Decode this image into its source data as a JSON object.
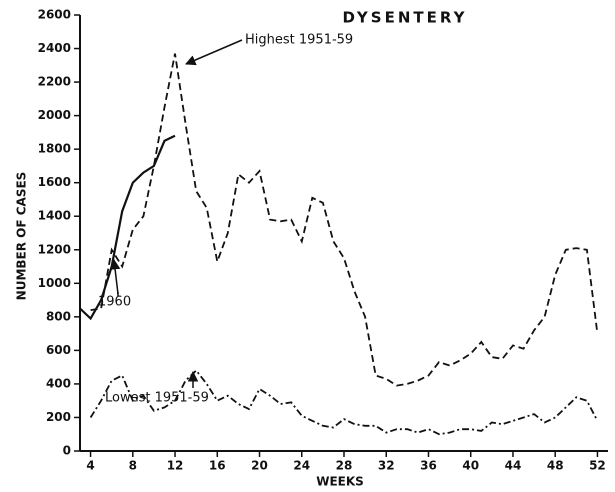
{
  "chart_data": {
    "type": "line",
    "title": "DYSENTERY",
    "y_label": "NUMBER OF CASES",
    "x_label": "WEEKS",
    "xlim": [
      3,
      53
    ],
    "ylim": [
      0,
      2600
    ],
    "xticks": [
      4,
      8,
      12,
      16,
      20,
      24,
      28,
      32,
      36,
      40,
      44,
      48,
      52
    ],
    "yticks": [
      0,
      200,
      400,
      600,
      800,
      1000,
      1200,
      1400,
      1600,
      1800,
      2000,
      2200,
      2400,
      2600
    ],
    "annotations": [
      "Highest 1951-59",
      "1960",
      "Lowest 1951-59"
    ],
    "series": [
      {
        "name": "Highest 1951-59",
        "color": "#111111",
        "dash": "dashed",
        "x": [
          4,
          5,
          6,
          7,
          8,
          9,
          10,
          11,
          12,
          13,
          14,
          15,
          16,
          17,
          18,
          19,
          20,
          21,
          22,
          23,
          24,
          25,
          26,
          27,
          28,
          29,
          30,
          31,
          32,
          33,
          34,
          35,
          36,
          37,
          38,
          39,
          40,
          41,
          42,
          43,
          44,
          45,
          46,
          47,
          48,
          49,
          50,
          51,
          52
        ],
        "values": [
          840,
          850,
          1200,
          1100,
          1320,
          1400,
          1700,
          2050,
          2370,
          1950,
          1550,
          1450,
          1130,
          1300,
          1650,
          1600,
          1670,
          1380,
          1370,
          1380,
          1250,
          1510,
          1480,
          1250,
          1150,
          950,
          800,
          450,
          430,
          390,
          400,
          420,
          450,
          530,
          510,
          540,
          580,
          650,
          560,
          550,
          630,
          610,
          720,
          800,
          1050,
          1200,
          1210,
          1200,
          700
        ]
      },
      {
        "name": "1960",
        "color": "#111111",
        "dash": "solid",
        "x": [
          3,
          4,
          5,
          6,
          7,
          8,
          9,
          10,
          11,
          12
        ],
        "values": [
          850,
          790,
          900,
          1100,
          1430,
          1600,
          1660,
          1700,
          1850,
          1880
        ]
      },
      {
        "name": "Lowest 1951-59",
        "color": "#111111",
        "dash": "dashdot",
        "x": [
          4,
          5,
          6,
          7,
          8,
          9,
          10,
          11,
          12,
          13,
          14,
          15,
          16,
          17,
          18,
          19,
          20,
          21,
          22,
          23,
          24,
          25,
          26,
          27,
          28,
          29,
          30,
          31,
          32,
          33,
          34,
          35,
          36,
          37,
          38,
          39,
          40,
          41,
          42,
          43,
          44,
          45,
          46,
          47,
          48,
          49,
          50,
          51,
          52
        ],
        "values": [
          200,
          300,
          420,
          450,
          300,
          330,
          240,
          260,
          300,
          420,
          480,
          400,
          300,
          330,
          280,
          250,
          370,
          330,
          280,
          290,
          210,
          180,
          150,
          140,
          190,
          160,
          150,
          150,
          110,
          130,
          130,
          110,
          130,
          100,
          110,
          130,
          130,
          120,
          170,
          160,
          180,
          200,
          220,
          170,
          200,
          260,
          320,
          300,
          180
        ]
      }
    ]
  }
}
